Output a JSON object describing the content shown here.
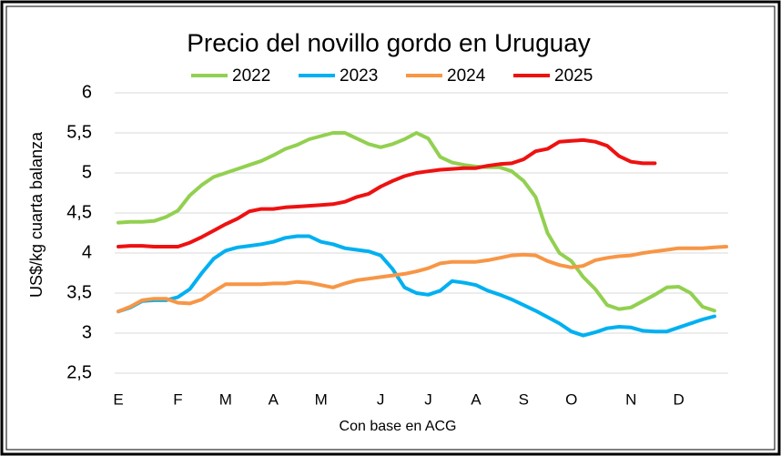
{
  "chart_data": {
    "type": "line",
    "title": "Precio del novillo gordo en Uruguay",
    "y_label": "US$/kg cuarta balanza",
    "x_label": "Con base en ACG",
    "categories": [
      "E",
      null,
      null,
      null,
      null,
      "F",
      null,
      null,
      null,
      "M",
      null,
      null,
      null,
      "A",
      null,
      null,
      null,
      "M",
      null,
      null,
      null,
      null,
      "J",
      null,
      null,
      null,
      "J",
      null,
      null,
      null,
      "A",
      null,
      null,
      null,
      "S",
      null,
      null,
      null,
      "O",
      null,
      null,
      null,
      null,
      "N",
      null,
      null,
      null,
      "D",
      null,
      null,
      null,
      null
    ],
    "ylim": [
      2.5,
      6
    ],
    "yticks": [
      {
        "value": 2.5,
        "label": "2,5"
      },
      3,
      {
        "value": 3.5,
        "label": "3,5"
      },
      4,
      {
        "value": 4.5,
        "label": "4,5"
      },
      5,
      {
        "value": 5.5,
        "label": "5,5"
      },
      6
    ],
    "grid": true,
    "series": [
      {
        "name": "2022",
        "color": "#92d050",
        "values": [
          4.38,
          4.39,
          4.39,
          4.4,
          4.45,
          4.53,
          4.72,
          4.85,
          4.95,
          5.0,
          5.05,
          5.1,
          5.15,
          5.22,
          5.3,
          5.35,
          5.42,
          5.46,
          5.5,
          5.5,
          5.43,
          5.36,
          5.32,
          5.36,
          5.42,
          5.5,
          5.43,
          5.2,
          5.13,
          5.1,
          5.08,
          5.07,
          5.07,
          5.02,
          4.9,
          4.7,
          4.25,
          4.0,
          3.9,
          3.7,
          3.55,
          3.35,
          3.3,
          3.32,
          3.4,
          3.48,
          3.57,
          3.58,
          3.5,
          3.33,
          3.28,
          null
        ]
      },
      {
        "name": "2023",
        "color": "#00b0f0",
        "values": [
          3.27,
          3.32,
          3.4,
          3.41,
          3.41,
          3.45,
          3.55,
          3.75,
          3.93,
          4.03,
          4.07,
          4.09,
          4.11,
          4.14,
          4.19,
          4.21,
          4.21,
          4.14,
          4.11,
          4.06,
          4.04,
          4.02,
          3.97,
          3.8,
          3.57,
          3.5,
          3.48,
          3.53,
          3.65,
          3.63,
          3.6,
          3.53,
          3.48,
          3.42,
          3.35,
          3.28,
          3.2,
          3.12,
          3.02,
          2.97,
          3.01,
          3.06,
          3.08,
          3.07,
          3.03,
          3.02,
          3.02,
          3.07,
          3.12,
          3.17,
          3.21,
          null
        ]
      },
      {
        "name": "2024",
        "color": "#f79646",
        "values": [
          3.27,
          3.33,
          3.41,
          3.43,
          3.43,
          3.38,
          3.37,
          3.42,
          3.52,
          3.61,
          3.61,
          3.61,
          3.61,
          3.62,
          3.62,
          3.64,
          3.63,
          3.6,
          3.57,
          3.62,
          3.66,
          3.68,
          3.7,
          3.72,
          3.74,
          3.77,
          3.81,
          3.87,
          3.89,
          3.89,
          3.89,
          3.91,
          3.94,
          3.97,
          3.98,
          3.97,
          3.9,
          3.85,
          3.82,
          3.84,
          3.91,
          3.94,
          3.96,
          3.97,
          4.0,
          4.02,
          4.04,
          4.06,
          4.06,
          4.06,
          4.07,
          4.08
        ]
      },
      {
        "name": "2025",
        "color": "#ee1111",
        "values": [
          4.08,
          4.09,
          4.09,
          4.08,
          4.08,
          4.08,
          4.13,
          4.2,
          4.28,
          4.36,
          4.43,
          4.52,
          4.55,
          4.55,
          4.57,
          4.58,
          4.59,
          4.6,
          4.61,
          4.64,
          4.7,
          4.74,
          4.83,
          4.9,
          4.96,
          5.0,
          5.02,
          5.04,
          5.05,
          5.06,
          5.06,
          5.09,
          5.11,
          5.12,
          5.17,
          5.27,
          5.3,
          5.39,
          5.4,
          5.41,
          5.39,
          5.34,
          5.21,
          5.14,
          5.12,
          5.12,
          null,
          null,
          null,
          null,
          null,
          null
        ]
      }
    ]
  }
}
